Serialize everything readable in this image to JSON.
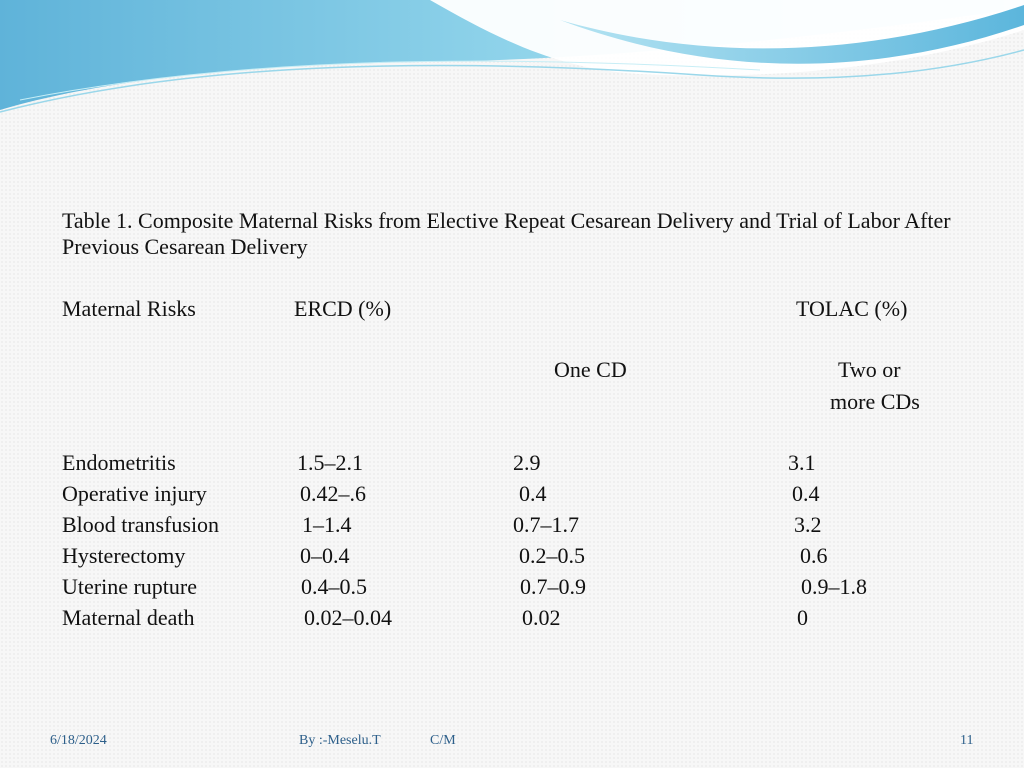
{
  "title": "Table 1. Composite Maternal Risks from Elective Repeat Cesarean Delivery and Trial of Labor After Previous Cesarean Delivery",
  "headers": {
    "col1": "Maternal Risks",
    "col2": "ERCD (%)",
    "col3": "TOLAC (%)",
    "sub_one": "One CD",
    "sub_two_line1": "Two or",
    "sub_two_line2": "more CDs"
  },
  "rows": [
    {
      "risk": "Endometritis",
      "ercd": "1.5–2.1",
      "one_cd": "2.9",
      "two_cd": "3.1"
    },
    {
      "risk": "Operative injury",
      "ercd": "0.42–.6",
      "one_cd": "0.4",
      "two_cd": "0.4"
    },
    {
      "risk": "Blood transfusion",
      "ercd": "1–1.4",
      "one_cd": "0.7–1.7",
      "two_cd": "3.2"
    },
    {
      "risk": "Hysterectomy",
      "ercd": "0–0.4",
      "one_cd": "0.2–0.5",
      "two_cd": "0.6"
    },
    {
      "risk": "Uterine rupture",
      "ercd": "0.4–0.5",
      "one_cd": "0.7–0.9",
      "two_cd": "0.9–1.8"
    },
    {
      "risk": "Maternal death",
      "ercd": "0.02–0.04",
      "one_cd": "0.02",
      "two_cd": "0"
    }
  ],
  "footer": {
    "date": "6/18/2024",
    "author": "By :-Meselu.T",
    "dept": "C/M",
    "page": "11"
  }
}
